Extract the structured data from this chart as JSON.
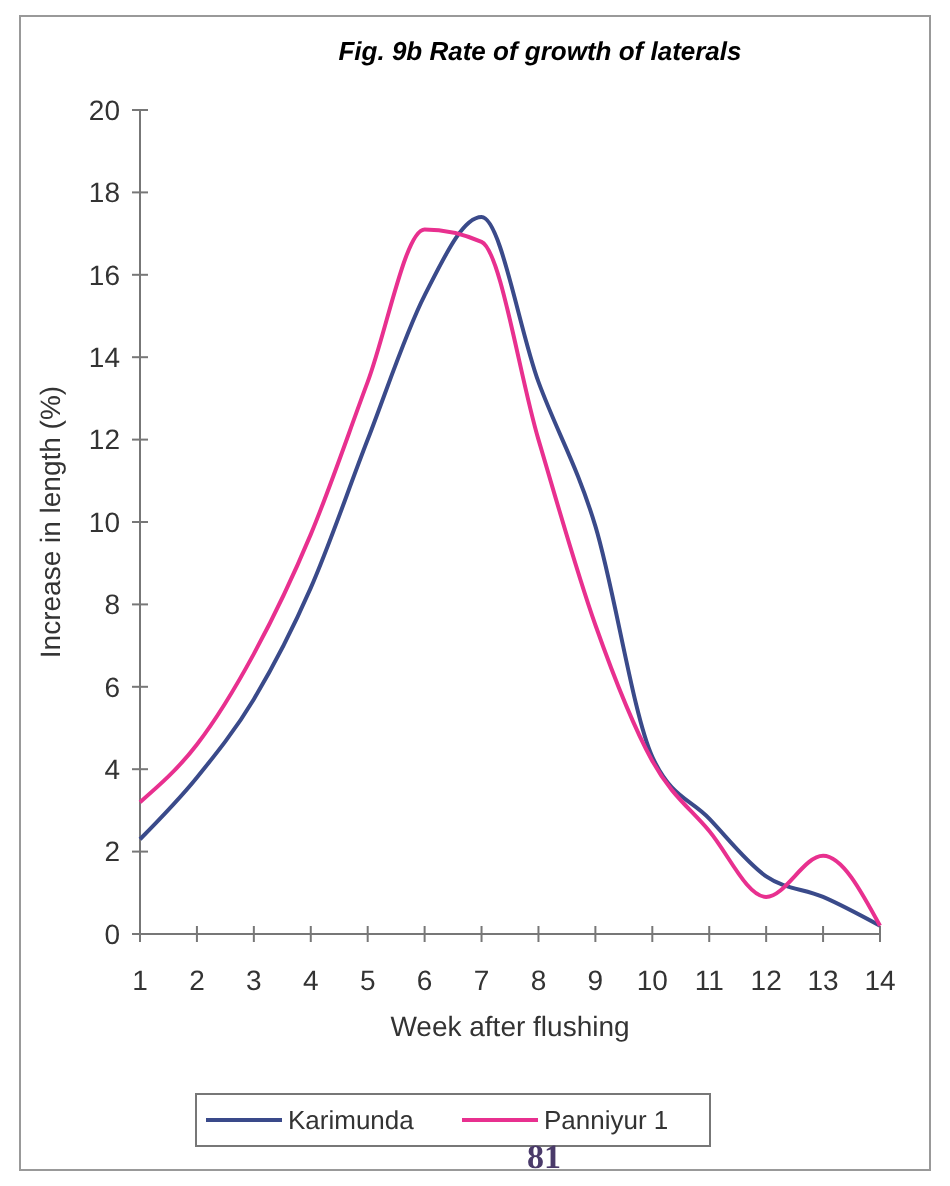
{
  "chart_data": {
    "type": "line",
    "title": "Fig. 9b Rate of growth of laterals",
    "xlabel": "Week after flushing",
    "ylabel": "Increase in length (%)",
    "categories": [
      "1",
      "2",
      "3",
      "4",
      "5",
      "6",
      "7",
      "8",
      "9",
      "10",
      "11",
      "12",
      "13",
      "14"
    ],
    "series": [
      {
        "name": "Karimunda",
        "color": "#3a4a8a",
        "values": [
          2.3,
          3.8,
          5.7,
          8.4,
          12,
          15.5,
          17.4,
          13.4,
          9.9,
          4.3,
          2.8,
          1.4,
          0.9,
          0.2
        ]
      },
      {
        "name": "Panniyur 1",
        "color": "#e8308f",
        "values": [
          3.2,
          4.6,
          6.8,
          9.7,
          13.4,
          17.1,
          16.8,
          12,
          7.5,
          4.2,
          2.5,
          0.9,
          1.9,
          0.2
        ]
      }
    ],
    "ylim": [
      0,
      20
    ],
    "yticks": [
      0,
      2,
      4,
      6,
      8,
      10,
      12,
      14,
      16,
      18,
      20
    ],
    "grid": false,
    "legend": "bottom",
    "marker": "none",
    "line_style": "solid",
    "annotations": [
      "81"
    ]
  }
}
